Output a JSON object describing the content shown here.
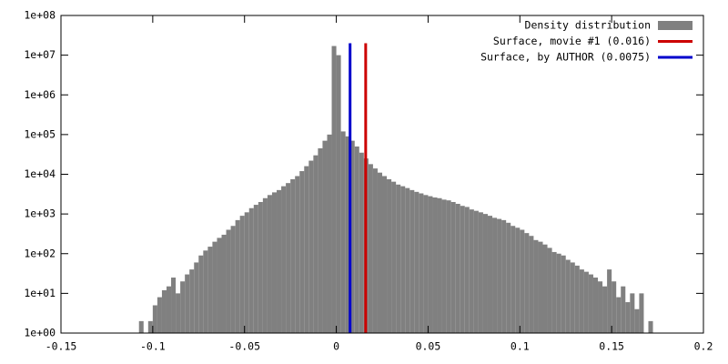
{
  "chart_data": {
    "type": "histogram",
    "name": "Density distribution",
    "color": "#808080",
    "bins": [
      -0.1075,
      -0.105,
      -0.1025,
      -0.1,
      -0.0975,
      -0.095,
      -0.0925,
      -0.09,
      -0.0875,
      -0.085,
      -0.0825,
      -0.08,
      -0.0775,
      -0.075,
      -0.0725,
      -0.07,
      -0.0675,
      -0.065,
      -0.0625,
      -0.06,
      -0.0575,
      -0.055,
      -0.0525,
      -0.05,
      -0.0475,
      -0.045,
      -0.0425,
      -0.04,
      -0.0375,
      -0.035,
      -0.0325,
      -0.03,
      -0.0275,
      -0.025,
      -0.0225,
      -0.02,
      -0.0175,
      -0.015,
      -0.0125,
      -0.01,
      -0.0075,
      -0.005,
      -0.0025,
      0,
      0.0025,
      0.005,
      0.0075,
      0.01,
      0.0125,
      0.015,
      0.0175,
      0.02,
      0.0225,
      0.025,
      0.0275,
      0.03,
      0.0325,
      0.035,
      0.0375,
      0.04,
      0.0425,
      0.045,
      0.0475,
      0.05,
      0.0525,
      0.055,
      0.0575,
      0.06,
      0.0625,
      0.065,
      0.0675,
      0.07,
      0.0725,
      0.075,
      0.0775,
      0.08,
      0.0825,
      0.085,
      0.0875,
      0.09,
      0.0925,
      0.095,
      0.0975,
      0.1,
      0.1025,
      0.105,
      0.1075,
      0.11,
      0.1125,
      0.115,
      0.1175,
      0.12,
      0.1225,
      0.125,
      0.1275,
      0.13,
      0.1325,
      0.135,
      0.1375,
      0.14,
      0.1425,
      0.145,
      0.1475,
      0.15,
      0.1525,
      0.155,
      0.1575,
      0.16,
      0.1625,
      0.165,
      0.1675,
      0.17,
      0.1725
    ],
    "values": [
      2,
      0,
      2,
      5,
      8,
      12,
      15,
      25,
      10,
      20,
      30,
      40,
      60,
      90,
      120,
      150,
      200,
      250,
      300,
      400,
      500,
      700,
      900,
      1100,
      1400,
      1700,
      2000,
      2500,
      3000,
      3500,
      4000,
      5000,
      6000,
      7500,
      9000,
      12000,
      16000,
      22000,
      30000,
      45000,
      70000,
      100000,
      17000000,
      10000000,
      120000,
      90000,
      70000,
      50000,
      35000,
      25000,
      18000,
      14000,
      11000,
      9000,
      7500,
      6500,
      5500,
      5000,
      4500,
      4000,
      3600,
      3300,
      3000,
      2800,
      2600,
      2500,
      2300,
      2200,
      2000,
      1800,
      1600,
      1500,
      1300,
      1200,
      1100,
      1000,
      900,
      800,
      750,
      700,
      600,
      500,
      450,
      400,
      330,
      280,
      220,
      200,
      170,
      140,
      110,
      100,
      90,
      70,
      60,
      50,
      40,
      35,
      30,
      25,
      20,
      15,
      40,
      20,
      8,
      15,
      6,
      10,
      4,
      10,
      0,
      2
    ],
    "vlines": [
      {
        "name": "Surface, movie #1 (0.016)",
        "color": "#cc0000",
        "x": 0.016,
        "y": [
          1,
          20000000
        ]
      },
      {
        "name": "Surface, by AUTHOR (0.0075)",
        "color": "#0000cc",
        "x": 0.0075,
        "y": [
          1,
          20000000
        ]
      }
    ],
    "xlim": [
      -0.15,
      0.2
    ],
    "xticks": [
      -0.15,
      -0.1,
      -0.05,
      0,
      0.05,
      0.1,
      0.15,
      0.2
    ],
    "ylim": [
      1,
      100000000
    ],
    "ylog": true,
    "yticks": [
      {
        "value": 1,
        "label": "1e+00"
      },
      {
        "value": 10,
        "label": "1e+01"
      },
      {
        "value": 100,
        "label": "1e+02"
      },
      {
        "value": 1000,
        "label": "1e+03"
      },
      {
        "value": 10000,
        "label": "1e+04"
      },
      {
        "value": 100000,
        "label": "1e+05"
      },
      {
        "value": 1000000,
        "label": "1e+06"
      },
      {
        "value": 10000000,
        "label": "1e+07"
      },
      {
        "value": 100000000,
        "label": "1e+08"
      }
    ],
    "legend": "top-right"
  }
}
